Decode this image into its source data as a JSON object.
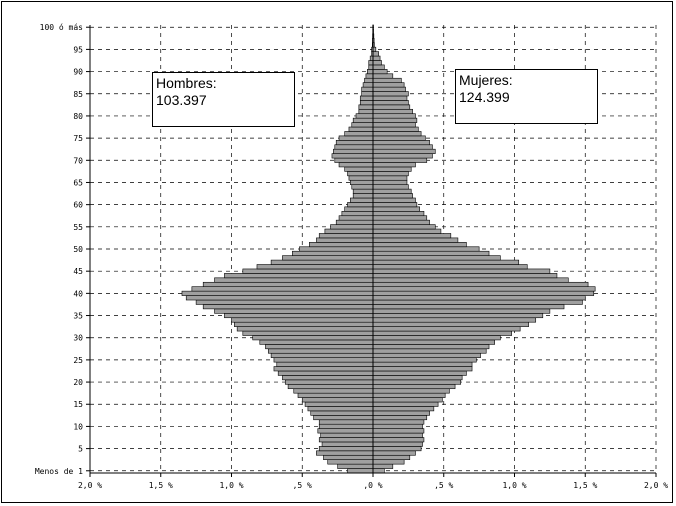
{
  "chart_data": {
    "type": "bar",
    "orientation": "horizontal",
    "subtype": "population-pyramid",
    "title": "",
    "xlabel": "",
    "ylabel": "",
    "xlim": [
      -2.0,
      2.0
    ],
    "ylim": [
      0,
      100
    ],
    "grid": true,
    "x_tick_labels": [
      "2,0 %",
      "1,5 %",
      "1,0 %",
      ",5 %",
      ",0 %",
      ",5 %",
      "1,0 %",
      "1,5 %",
      "2,0 %"
    ],
    "y_tick_labels": [
      "Menos de 1",
      "5",
      "10",
      "15",
      "20",
      "25",
      "30",
      "35",
      "40",
      "45",
      "50",
      "55",
      "60",
      "65",
      "70",
      "75",
      "80",
      "85",
      "90",
      "95",
      "100 ó más"
    ],
    "y_tick_values": [
      0,
      5,
      10,
      15,
      20,
      25,
      30,
      35,
      40,
      45,
      50,
      55,
      60,
      65,
      70,
      75,
      80,
      85,
      90,
      95,
      100
    ],
    "ages": [
      0,
      1,
      2,
      3,
      4,
      5,
      6,
      7,
      8,
      9,
      10,
      11,
      12,
      13,
      14,
      15,
      16,
      17,
      18,
      19,
      20,
      21,
      22,
      23,
      24,
      25,
      26,
      27,
      28,
      29,
      30,
      31,
      32,
      33,
      34,
      35,
      36,
      37,
      38,
      39,
      40,
      41,
      42,
      43,
      44,
      45,
      46,
      47,
      48,
      49,
      50,
      51,
      52,
      53,
      54,
      55,
      56,
      57,
      58,
      59,
      60,
      61,
      62,
      63,
      64,
      65,
      66,
      67,
      68,
      69,
      70,
      71,
      72,
      73,
      74,
      75,
      76,
      77,
      78,
      79,
      80,
      81,
      82,
      83,
      84,
      85,
      86,
      87,
      88,
      89,
      90,
      91,
      92,
      93,
      94,
      95,
      96,
      97,
      98,
      99,
      100
    ],
    "series": [
      {
        "name": "Hombres",
        "color": "#a0a0a0",
        "values": [
          -0.18,
          -0.25,
          -0.32,
          -0.35,
          -0.4,
          -0.38,
          -0.36,
          -0.38,
          -0.37,
          -0.39,
          -0.38,
          -0.38,
          -0.42,
          -0.44,
          -0.46,
          -0.48,
          -0.5,
          -0.53,
          -0.56,
          -0.6,
          -0.62,
          -0.64,
          -0.67,
          -0.7,
          -0.68,
          -0.7,
          -0.72,
          -0.74,
          -0.76,
          -0.8,
          -0.85,
          -0.92,
          -0.96,
          -0.98,
          -1.0,
          -1.05,
          -1.12,
          -1.2,
          -1.25,
          -1.32,
          -1.35,
          -1.28,
          -1.2,
          -1.12,
          -1.05,
          -0.92,
          -0.82,
          -0.72,
          -0.64,
          -0.57,
          -0.52,
          -0.45,
          -0.4,
          -0.38,
          -0.34,
          -0.3,
          -0.26,
          -0.24,
          -0.22,
          -0.2,
          -0.18,
          -0.16,
          -0.14,
          -0.14,
          -0.15,
          -0.16,
          -0.17,
          -0.18,
          -0.2,
          -0.24,
          -0.27,
          -0.29,
          -0.28,
          -0.27,
          -0.26,
          -0.24,
          -0.2,
          -0.17,
          -0.15,
          -0.14,
          -0.12,
          -0.1,
          -0.1,
          -0.09,
          -0.09,
          -0.08,
          -0.08,
          -0.07,
          -0.06,
          -0.05,
          -0.04,
          -0.03,
          -0.03,
          -0.02,
          -0.01,
          -0.01,
          -0.005,
          -0.004,
          -0.003,
          -0.002,
          -0.002
        ]
      },
      {
        "name": "Mujeres",
        "color": "#a0a0a0",
        "values": [
          0.08,
          0.14,
          0.22,
          0.26,
          0.3,
          0.34,
          0.35,
          0.36,
          0.35,
          0.36,
          0.35,
          0.36,
          0.38,
          0.4,
          0.43,
          0.46,
          0.49,
          0.51,
          0.54,
          0.58,
          0.62,
          0.63,
          0.66,
          0.7,
          0.7,
          0.73,
          0.76,
          0.8,
          0.82,
          0.86,
          0.9,
          0.98,
          1.04,
          1.1,
          1.15,
          1.2,
          1.25,
          1.35,
          1.48,
          1.5,
          1.56,
          1.57,
          1.52,
          1.38,
          1.3,
          1.25,
          1.09,
          1.03,
          0.9,
          0.82,
          0.75,
          0.66,
          0.6,
          0.55,
          0.48,
          0.44,
          0.4,
          0.38,
          0.36,
          0.33,
          0.31,
          0.3,
          0.28,
          0.27,
          0.25,
          0.24,
          0.24,
          0.25,
          0.27,
          0.3,
          0.38,
          0.42,
          0.44,
          0.42,
          0.4,
          0.37,
          0.34,
          0.32,
          0.3,
          0.31,
          0.3,
          0.28,
          0.26,
          0.25,
          0.24,
          0.25,
          0.23,
          0.22,
          0.2,
          0.14,
          0.1,
          0.08,
          0.06,
          0.05,
          0.04,
          0.02,
          0.01,
          0.008,
          0.006,
          0.004,
          0.003
        ]
      }
    ]
  },
  "legend": {
    "men_label": "Hombres:",
    "men_total": "103.397",
    "women_label": "Mujeres:",
    "women_total": "124.399"
  }
}
